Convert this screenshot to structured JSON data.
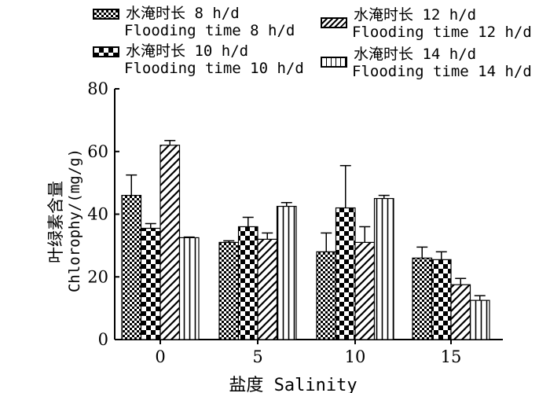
{
  "chart_data": {
    "type": "bar",
    "xlabel": "盐度 Salinity",
    "ylabel_cn": "叶绿素含量",
    "ylabel_en": "Chlorophy/(mg/g)",
    "categories": [
      "0",
      "5",
      "10",
      "15"
    ],
    "ylim": [
      0,
      80
    ],
    "yticks": [
      "0",
      "20",
      "40",
      "60",
      "80"
    ],
    "series": [
      {
        "name_cn": "水淹时长 8 h/d",
        "name_en": "Flooding time 8 h/d",
        "pattern": "checker-small",
        "values": [
          46,
          31,
          28,
          26
        ],
        "errors": [
          6.5,
          0.5,
          6,
          3.5
        ]
      },
      {
        "name_cn": "水淹时长 10 h/d",
        "name_en": "Flooding time 10 h/d",
        "pattern": "checker-large",
        "values": [
          35.5,
          36,
          42,
          25.5
        ],
        "errors": [
          1.5,
          3,
          13.5,
          2.5
        ]
      },
      {
        "name_cn": "水淹时长 12 h/d",
        "name_en": "Flooding time 12 h/d",
        "pattern": "diagonal",
        "values": [
          62,
          32,
          31,
          17.5
        ],
        "errors": [
          1.5,
          2,
          5,
          2
        ]
      },
      {
        "name_cn": "水淹时长 14 h/d",
        "name_en": "Flooding time 14 h/d",
        "pattern": "vertical",
        "values": [
          32.5,
          42.5,
          45,
          12.5
        ],
        "errors": [
          0.2,
          1.2,
          1,
          1.5
        ]
      }
    ],
    "grid": false,
    "legend_position": "top"
  }
}
